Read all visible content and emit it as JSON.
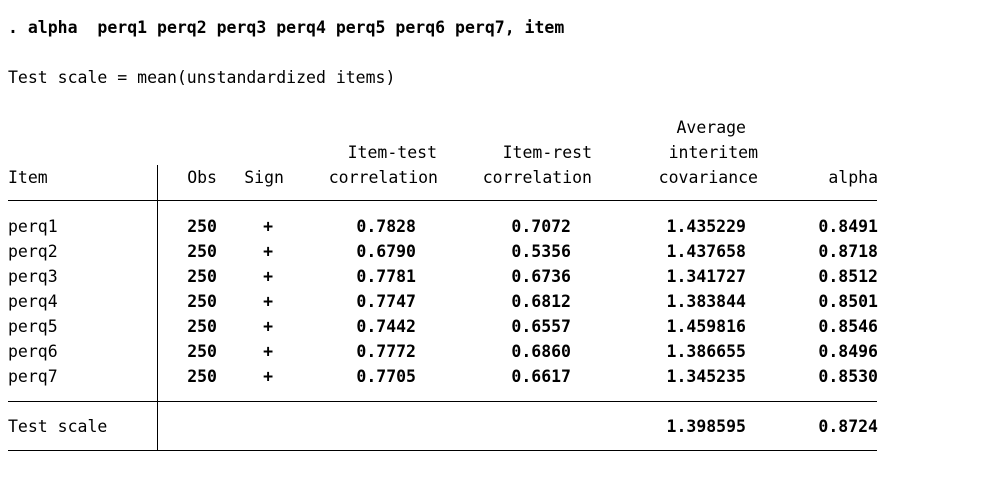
{
  "command": ". alpha  perq1 perq2 perq3 perq4 perq5 perq6 perq7, item",
  "scale_note": "Test scale = mean(unstandardized items)",
  "headers": {
    "item": "Item",
    "obs": "Obs",
    "sign": "Sign",
    "itc_line1": "Item-test",
    "itc_line2": "correlation",
    "irc_line1": "Item-rest",
    "irc_line2": "correlation",
    "cov_line1": "Average",
    "cov_line2": "interitem",
    "cov_line3": "covariance",
    "alpha": "alpha"
  },
  "rows": [
    {
      "item": "perq1",
      "obs": "250",
      "sign": "+",
      "item_test": "0.7828",
      "item_rest": "0.7072",
      "cov": "1.435229",
      "alpha": "0.8491"
    },
    {
      "item": "perq2",
      "obs": "250",
      "sign": "+",
      "item_test": "0.6790",
      "item_rest": "0.5356",
      "cov": "1.437658",
      "alpha": "0.8718"
    },
    {
      "item": "perq3",
      "obs": "250",
      "sign": "+",
      "item_test": "0.7781",
      "item_rest": "0.6736",
      "cov": "1.341727",
      "alpha": "0.8512"
    },
    {
      "item": "perq4",
      "obs": "250",
      "sign": "+",
      "item_test": "0.7747",
      "item_rest": "0.6812",
      "cov": "1.383844",
      "alpha": "0.8501"
    },
    {
      "item": "perq5",
      "obs": "250",
      "sign": "+",
      "item_test": "0.7442",
      "item_rest": "0.6557",
      "cov": "1.459816",
      "alpha": "0.8546"
    },
    {
      "item": "perq6",
      "obs": "250",
      "sign": "+",
      "item_test": "0.7772",
      "item_rest": "0.6860",
      "cov": "1.386655",
      "alpha": "0.8496"
    },
    {
      "item": "perq7",
      "obs": "250",
      "sign": "+",
      "item_test": "0.7705",
      "item_rest": "0.6617",
      "cov": "1.345235",
      "alpha": "0.8530"
    }
  ],
  "total": {
    "label": "Test scale",
    "cov": "1.398595",
    "alpha": "0.8724"
  }
}
